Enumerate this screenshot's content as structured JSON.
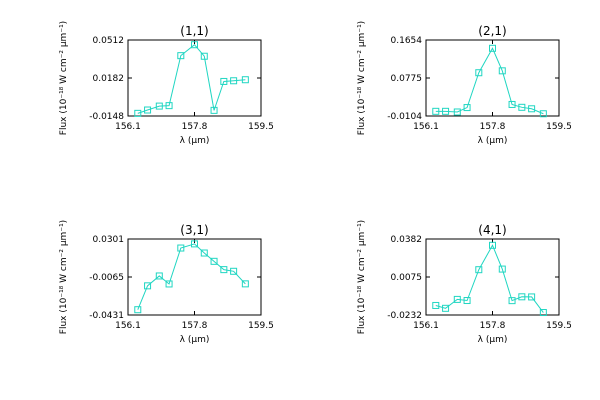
{
  "chart_data": [
    {
      "type": "line",
      "title": "(1,1)",
      "xlabel": "λ (μm)",
      "ylabel": "Flux (10⁻¹⁸ W cm⁻² μm⁻¹)",
      "xlim": [
        156.1,
        159.5
      ],
      "ylim": [
        -0.0148,
        0.0512
      ],
      "x_ticks": [
        156.1,
        157.8,
        159.5
      ],
      "y_ticks": [
        -0.0148,
        0.0182,
        0.0512
      ],
      "x_tick_labels": [
        "156.1",
        "157.8",
        "159.5"
      ],
      "y_tick_labels": [
        "-0.0148",
        "0.0182",
        "0.0512"
      ],
      "series": [
        {
          "x": [
            156.35,
            156.6,
            156.9,
            157.15,
            157.45,
            157.8,
            158.05,
            158.3,
            158.55,
            158.8,
            159.1
          ],
          "y": [
            -0.0125,
            -0.0096,
            -0.0062,
            -0.0058,
            0.0376,
            0.0471,
            0.0371,
            -0.0099,
            0.0152,
            0.0158,
            0.0167
          ]
        }
      ]
    },
    {
      "type": "line",
      "title": "(2,1)",
      "xlabel": "λ (μm)",
      "ylabel": "Flux (10⁻¹⁸ W cm⁻² μm⁻¹)",
      "xlim": [
        156.1,
        159.5
      ],
      "ylim": [
        -0.0104,
        0.1654
      ],
      "x_ticks": [
        156.1,
        157.8,
        159.5
      ],
      "y_ticks": [
        -0.0104,
        0.0775,
        0.1654
      ],
      "x_tick_labels": [
        "156.1",
        "157.8",
        "159.5"
      ],
      "y_tick_labels": [
        "-0.0104",
        "0.0775",
        "0.1654"
      ],
      "series": [
        {
          "x": [
            156.35,
            156.6,
            156.9,
            157.15,
            157.45,
            157.8,
            158.05,
            158.3,
            158.55,
            158.8,
            159.1
          ],
          "y": [
            0.0004,
            0.0004,
            -0.0011,
            0.0091,
            0.0897,
            0.1462,
            0.0941,
            0.0163,
            0.0097,
            0.0063,
            -0.0052
          ]
        }
      ]
    },
    {
      "type": "line",
      "title": "(3,1)",
      "xlabel": "λ (μm)",
      "ylabel": "Flux (10⁻¹⁸ W cm⁻² μm⁻¹)",
      "xlim": [
        156.1,
        159.5
      ],
      "ylim": [
        -0.0431,
        0.0301
      ],
      "x_ticks": [
        156.1,
        157.8,
        159.5
      ],
      "y_ticks": [
        -0.0431,
        -0.0065,
        0.0301
      ],
      "x_tick_labels": [
        "156.1",
        "157.8",
        "159.5"
      ],
      "y_tick_labels": [
        "-0.0431",
        "-0.0065",
        "0.0301"
      ],
      "series": [
        {
          "x": [
            156.35,
            156.6,
            156.9,
            157.15,
            157.45,
            157.8,
            158.05,
            158.3,
            158.55,
            158.8,
            159.1
          ],
          "y": [
            -0.038,
            -0.015,
            -0.0055,
            -0.0132,
            0.0214,
            0.0254,
            0.0166,
            0.0086,
            0.0006,
            -0.001,
            -0.0131
          ]
        }
      ]
    },
    {
      "type": "line",
      "title": "(4,1)",
      "xlabel": "λ (μm)",
      "ylabel": "Flux (10⁻¹⁸ W cm⁻² μm⁻¹)",
      "xlim": [
        156.1,
        159.5
      ],
      "ylim": [
        -0.0232,
        0.0382
      ],
      "x_ticks": [
        156.1,
        157.8,
        159.5
      ],
      "y_ticks": [
        -0.0232,
        0.0075,
        0.0382
      ],
      "x_tick_labels": [
        "156.1",
        "157.8",
        "159.5"
      ],
      "y_tick_labels": [
        "-0.0232",
        "0.0075",
        "0.0382"
      ],
      "series": [
        {
          "x": [
            156.35,
            156.6,
            156.9,
            157.15,
            157.45,
            157.8,
            158.05,
            158.3,
            158.55,
            158.8,
            159.1
          ],
          "y": [
            -0.0155,
            -0.0178,
            -0.0106,
            -0.0115,
            0.0134,
            0.0331,
            0.0139,
            -0.0116,
            -0.0085,
            -0.0086,
            -0.0212
          ]
        }
      ]
    }
  ],
  "style": {
    "series_color": "#20d6c2",
    "axis_color": "#000000",
    "background_color": "#ffffff"
  }
}
